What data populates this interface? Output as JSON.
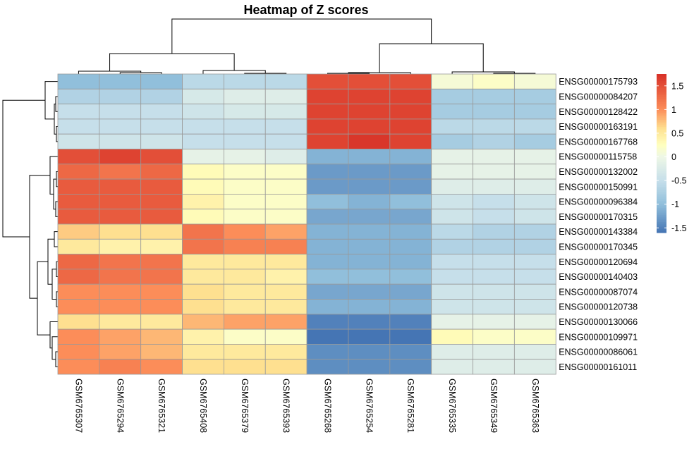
{
  "chart_data": {
    "type": "heatmap",
    "title": "Heatmap of Z scores",
    "columns": [
      "GSM6765307",
      "GSM6765294",
      "GSM6765321",
      "GSM6765408",
      "GSM6765379",
      "GSM6765393",
      "GSM6765268",
      "GSM6765254",
      "GSM6765281",
      "GSM6765335",
      "GSM6765349",
      "GSM6765363"
    ],
    "rows": [
      "ENSG00000175793",
      "ENSG00000084207",
      "ENSG00000128422",
      "ENSG00000163191",
      "ENSG00000167768",
      "ENSG00000115758",
      "ENSG00000132002",
      "ENSG00000150991",
      "ENSG00000096384",
      "ENSG00000170315",
      "ENSG00000143384",
      "ENSG00000170345",
      "ENSG00000120694",
      "ENSG00000140403",
      "ENSG00000087074",
      "ENSG00000120738",
      "ENSG00000130066",
      "ENSG00000109971",
      "ENSG00000086061",
      "ENSG00000161011"
    ],
    "values": [
      [
        -1.0,
        -1.0,
        -1.0,
        -0.6,
        -0.6,
        -0.6,
        1.5,
        1.5,
        1.5,
        0.1,
        0.2,
        0.1
      ],
      [
        -0.7,
        -0.7,
        -0.7,
        -0.3,
        -0.2,
        -0.2,
        1.6,
        1.6,
        1.6,
        -0.8,
        -0.8,
        -0.8
      ],
      [
        -0.5,
        -0.5,
        -0.5,
        -0.4,
        -0.3,
        -0.3,
        1.6,
        1.6,
        1.6,
        -0.8,
        -0.8,
        -0.8
      ],
      [
        -0.5,
        -0.5,
        -0.5,
        -0.5,
        -0.5,
        -0.5,
        1.6,
        1.6,
        1.6,
        -0.6,
        -0.6,
        -0.6
      ],
      [
        -0.4,
        -0.4,
        -0.4,
        -0.5,
        -0.5,
        -0.5,
        1.6,
        1.7,
        1.6,
        -0.8,
        -0.7,
        -0.8
      ],
      [
        1.5,
        1.6,
        1.5,
        -0.1,
        -0.1,
        -0.2,
        -1.1,
        -1.1,
        -1.1,
        -0.1,
        -0.1,
        -0.1
      ],
      [
        1.3,
        1.2,
        1.3,
        0.3,
        0.2,
        0.2,
        -1.3,
        -1.3,
        -1.3,
        -0.1,
        -0.1,
        -0.1
      ],
      [
        1.4,
        1.4,
        1.4,
        0.3,
        0.2,
        0.2,
        -1.3,
        -1.3,
        -1.3,
        -0.2,
        -0.2,
        -0.2
      ],
      [
        1.4,
        1.4,
        1.4,
        0.4,
        0.2,
        0.2,
        -1.0,
        -1.1,
        -1.0,
        -0.4,
        -0.5,
        -0.4
      ],
      [
        1.4,
        1.4,
        1.4,
        0.3,
        0.2,
        0.2,
        -1.2,
        -1.2,
        -1.2,
        -0.4,
        -0.5,
        -0.4
      ],
      [
        0.7,
        0.6,
        0.6,
        1.2,
        1.0,
        0.9,
        -1.1,
        -1.1,
        -1.1,
        -0.6,
        -0.7,
        -0.7
      ],
      [
        0.5,
        0.4,
        0.4,
        1.2,
        1.1,
        1.1,
        -1.1,
        -1.1,
        -1.1,
        -0.7,
        -0.7,
        -0.7
      ],
      [
        1.3,
        1.2,
        1.2,
        0.5,
        0.5,
        0.5,
        -1.1,
        -1.1,
        -1.1,
        -0.5,
        -0.5,
        -0.5
      ],
      [
        1.3,
        1.2,
        1.2,
        0.5,
        0.5,
        0.4,
        -1.0,
        -1.0,
        -1.0,
        -0.5,
        -0.5,
        -0.5
      ],
      [
        1.0,
        1.0,
        1.0,
        0.6,
        0.5,
        0.5,
        -1.2,
        -1.2,
        -1.2,
        -0.4,
        -0.4,
        -0.4
      ],
      [
        1.0,
        1.0,
        1.0,
        0.6,
        0.5,
        0.5,
        -1.1,
        -1.1,
        -1.1,
        -0.4,
        -0.4,
        -0.4
      ],
      [
        0.6,
        0.5,
        0.5,
        0.8,
        0.9,
        0.9,
        -1.5,
        -1.5,
        -1.5,
        -0.1,
        -0.1,
        -0.1
      ],
      [
        1.0,
        0.9,
        0.8,
        0.4,
        0.2,
        0.2,
        -1.6,
        -1.6,
        -1.6,
        0.3,
        0.2,
        0.2
      ],
      [
        1.0,
        0.9,
        0.8,
        0.5,
        0.5,
        0.5,
        -1.4,
        -1.4,
        -1.4,
        -0.2,
        -0.2,
        -0.2
      ],
      [
        1.0,
        1.1,
        1.0,
        0.6,
        0.6,
        0.6,
        -1.4,
        -1.4,
        -1.4,
        -0.2,
        -0.2,
        -0.2
      ]
    ],
    "legend": {
      "ticks": [
        1.5,
        1,
        0.5,
        0,
        -0.5,
        -1,
        -1.5
      ],
      "range": [
        -1.6,
        1.75
      ]
    },
    "colors": {
      "low": "#4575B4",
      "mid": "#FFFFBF",
      "high": "#D73027",
      "grid": "#999999"
    }
  }
}
